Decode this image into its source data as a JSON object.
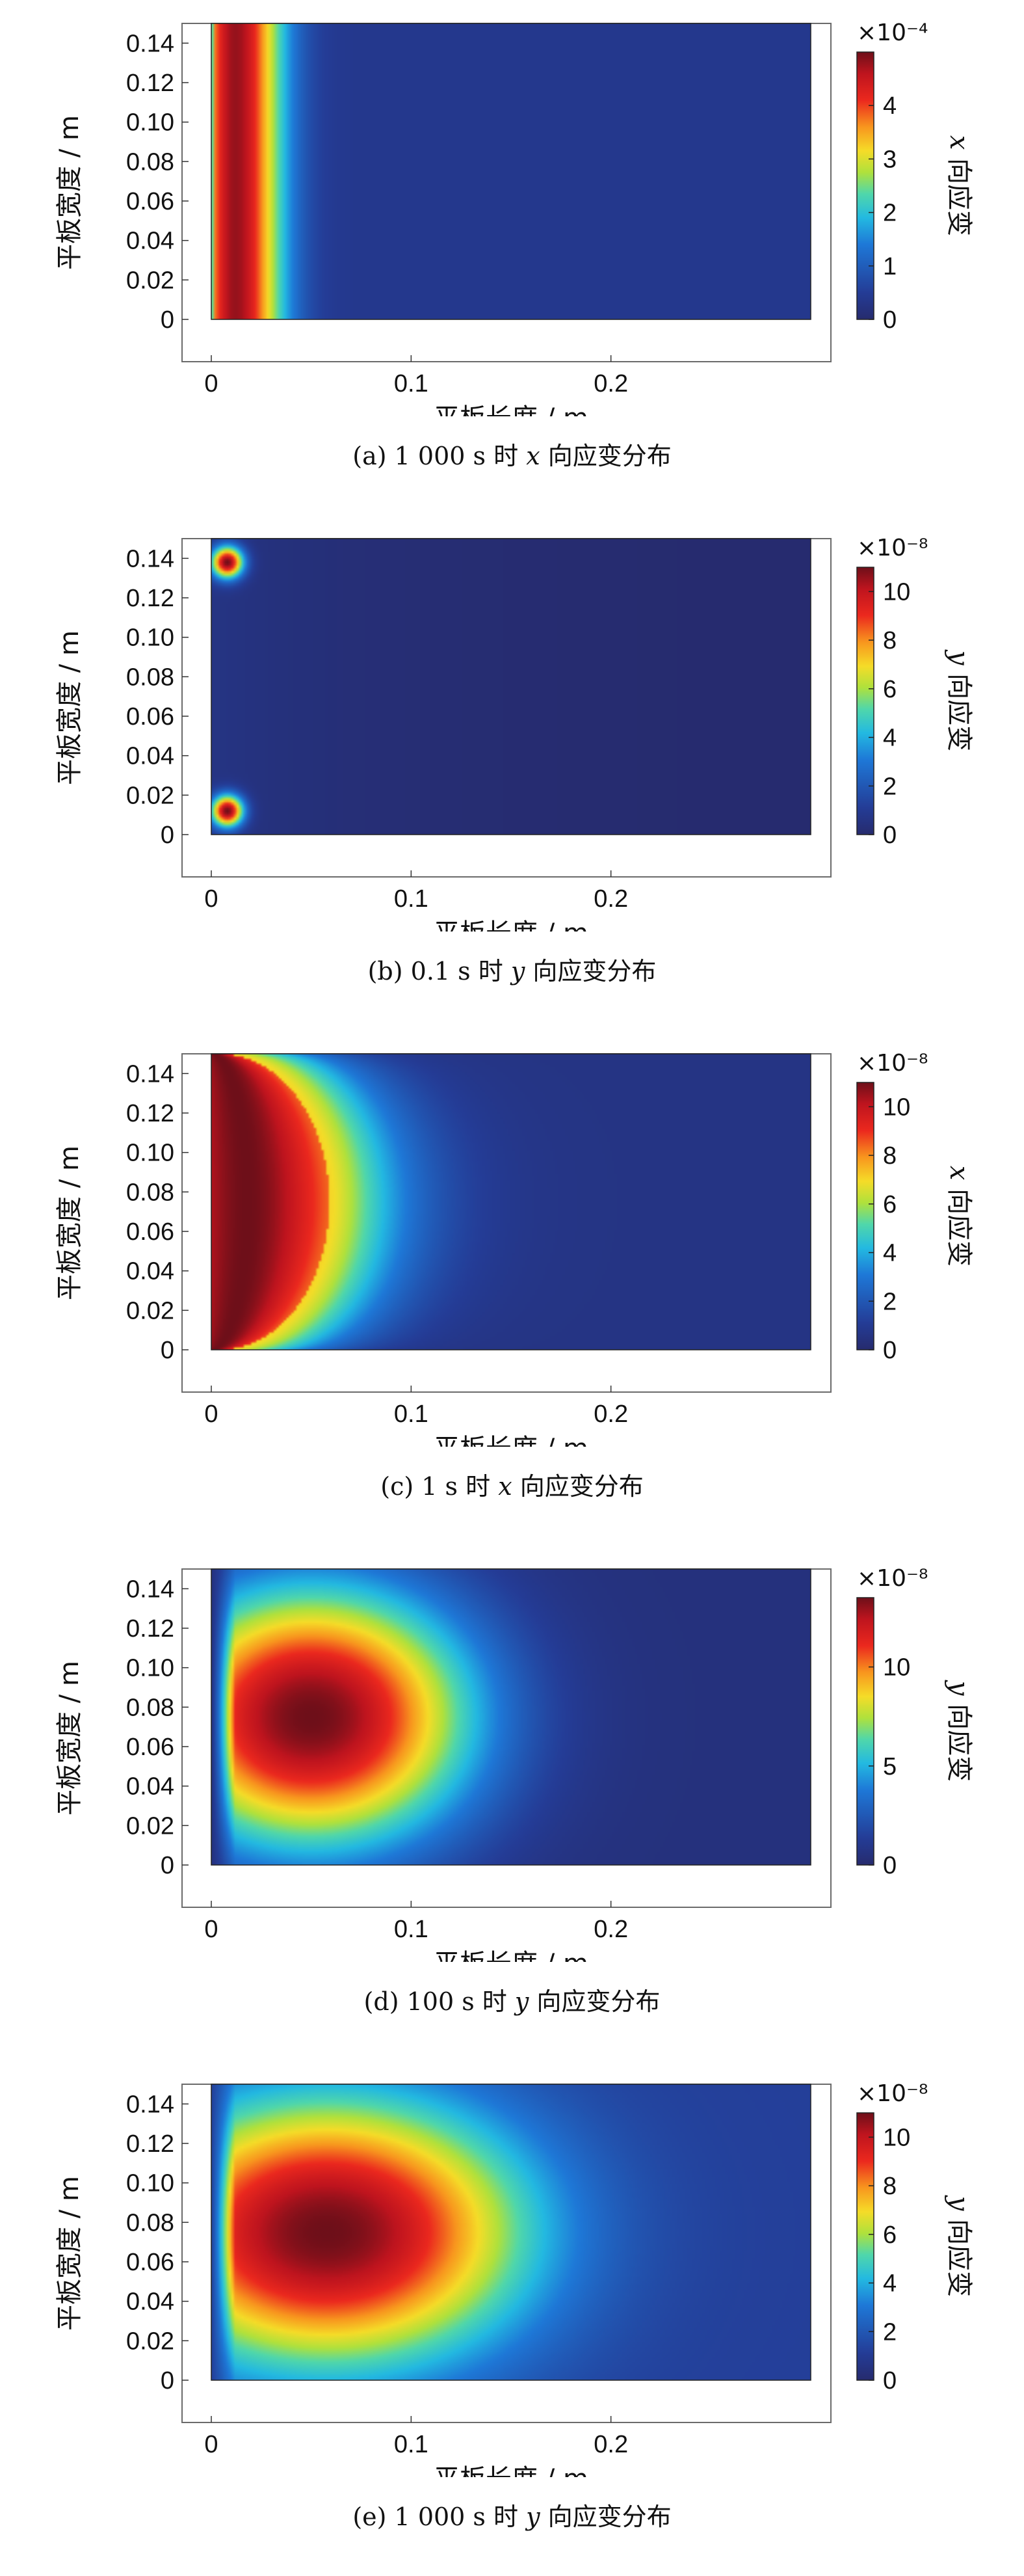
{
  "chart_data": [
    {
      "type": "heatmap",
      "panel": "a",
      "caption": {
        "prefix": "(a) 1 000 s 时 ",
        "var": "x",
        "suffix": " 向应变分布"
      },
      "xlabel": "平板长度 / m",
      "ylabel": "平板宽度 / m",
      "colorbar_label": {
        "var": "x",
        "text": " 向应变"
      },
      "colorbar_multiplier": "×10⁻⁴",
      "xlim": [
        0,
        0.3
      ],
      "ylim": [
        0,
        0.15
      ],
      "xticks": [
        "0",
        "0.1",
        "0.2"
      ],
      "xtick_values": [
        0,
        0.1,
        0.2
      ],
      "yticks": [
        "0",
        "0.02",
        "0.04",
        "0.06",
        "0.08",
        "0.10",
        "0.12",
        "0.14"
      ],
      "ytick_values": [
        0,
        0.02,
        0.04,
        0.06,
        0.08,
        0.1,
        0.12,
        0.14
      ],
      "color_range": [
        0,
        5
      ],
      "colorbar_ticks": [
        "0",
        "1",
        "2",
        "3",
        "4"
      ],
      "colorbar_tick_values": [
        0,
        1,
        2,
        3,
        4
      ],
      "field": {
        "kind": "x_decay",
        "peak": 4.8,
        "peak_x": 0.012,
        "decay_length": 0.024
      }
    },
    {
      "type": "heatmap",
      "panel": "b",
      "caption": {
        "prefix": "(b) 0.1 s 时 ",
        "var": "y",
        "suffix": " 向应变分布"
      },
      "xlabel": "平板长度 / m",
      "ylabel": "平板宽度 / m",
      "colorbar_label": {
        "var": "y",
        "text": " 向应变"
      },
      "colorbar_multiplier": "×10⁻⁸",
      "xlim": [
        0,
        0.3
      ],
      "ylim": [
        0,
        0.15
      ],
      "xticks": [
        "0",
        "0.1",
        "0.2"
      ],
      "xtick_values": [
        0,
        0.1,
        0.2
      ],
      "yticks": [
        "0",
        "0.02",
        "0.04",
        "0.06",
        "0.08",
        "0.10",
        "0.12",
        "0.14"
      ],
      "ytick_values": [
        0,
        0.02,
        0.04,
        0.06,
        0.08,
        0.1,
        0.12,
        0.14
      ],
      "color_range": [
        0,
        11
      ],
      "colorbar_ticks": [
        "0",
        "2",
        "4",
        "6",
        "8",
        "10"
      ],
      "colorbar_tick_values": [
        0,
        2,
        4,
        6,
        8,
        10
      ],
      "field": {
        "kind": "corner_spots",
        "peak": 11,
        "spot_x": 0.008,
        "spot_dy": 0.012,
        "spread": 0.008,
        "background": 0.6
      }
    },
    {
      "type": "heatmap",
      "panel": "c",
      "caption": {
        "prefix": "(c) 1 s 时 ",
        "var": "x",
        "suffix": " 向应变分布"
      },
      "xlabel": "平板长度 / m",
      "ylabel": "平板宽度 / m",
      "colorbar_label": {
        "var": "x",
        "text": " 向应变"
      },
      "colorbar_multiplier": "×10⁻⁸",
      "xlim": [
        0,
        0.3
      ],
      "ylim": [
        0,
        0.15
      ],
      "xticks": [
        "0",
        "0.1",
        "0.2"
      ],
      "xtick_values": [
        0,
        0.1,
        0.2
      ],
      "yticks": [
        "0",
        "0.02",
        "0.04",
        "0.06",
        "0.08",
        "0.10",
        "0.12",
        "0.14"
      ],
      "ytick_values": [
        0,
        0.02,
        0.04,
        0.06,
        0.08,
        0.1,
        0.12,
        0.14
      ],
      "color_range": [
        0,
        11
      ],
      "colorbar_ticks": [
        "0",
        "2",
        "4",
        "6",
        "8",
        "10"
      ],
      "colorbar_tick_values": [
        0,
        2,
        4,
        6,
        8,
        10
      ],
      "field": {
        "kind": "crescent",
        "peak": 11,
        "edge_x": 0.055,
        "crest_x": 0.018,
        "band_width": 0.04,
        "background": 0.6
      }
    },
    {
      "type": "heatmap",
      "panel": "d",
      "caption": {
        "prefix": "(d) 100 s 时 ",
        "var": "y",
        "suffix": " 向应变分布"
      },
      "xlabel": "平板长度 / m",
      "ylabel": "平板宽度 / m",
      "colorbar_label": {
        "var": "y",
        "text": " 向应变"
      },
      "colorbar_multiplier": "×10⁻⁸",
      "xlim": [
        0,
        0.3
      ],
      "ylim": [
        0,
        0.15
      ],
      "xticks": [
        "0",
        "0.1",
        "0.2"
      ],
      "xtick_values": [
        0,
        0.1,
        0.2
      ],
      "yticks": [
        "0",
        "0.02",
        "0.04",
        "0.06",
        "0.08",
        "0.10",
        "0.12",
        "0.14"
      ],
      "ytick_values": [
        0,
        0.02,
        0.04,
        0.06,
        0.08,
        0.1,
        0.12,
        0.14
      ],
      "color_range": [
        0,
        13.5
      ],
      "colorbar_ticks": [
        "0",
        "5",
        "10"
      ],
      "colorbar_tick_values": [
        0,
        5,
        10
      ],
      "field": {
        "kind": "blob",
        "peak": 13.5,
        "center_x": 0.05,
        "center_y": 0.075,
        "radius_x": 0.085,
        "radius_y": 0.07,
        "background": 0.5
      }
    },
    {
      "type": "heatmap",
      "panel": "e",
      "caption": {
        "prefix": "(e) 1 000 s 时 ",
        "var": "y",
        "suffix": " 向应变分布"
      },
      "xlabel": "平板长度 / m",
      "ylabel": "平板宽度 / m",
      "colorbar_label": {
        "var": "y",
        "text": " 向应变"
      },
      "colorbar_multiplier": "×10⁻⁸",
      "xlim": [
        0,
        0.3
      ],
      "ylim": [
        0,
        0.15
      ],
      "xticks": [
        "0",
        "0.1",
        "0.2"
      ],
      "xtick_values": [
        0,
        0.1,
        0.2
      ],
      "yticks": [
        "0",
        "0.02",
        "0.04",
        "0.06",
        "0.08",
        "0.10",
        "0.12",
        "0.14"
      ],
      "ytick_values": [
        0,
        0.02,
        0.04,
        0.06,
        0.08,
        0.1,
        0.12,
        0.14
      ],
      "color_range": [
        0,
        11
      ],
      "colorbar_ticks": [
        "0",
        "2",
        "4",
        "6",
        "8",
        "10"
      ],
      "colorbar_tick_values": [
        0,
        2,
        4,
        6,
        8,
        10
      ],
      "field": {
        "kind": "blob",
        "peak": 11,
        "center_x": 0.058,
        "center_y": 0.075,
        "radius_x": 0.105,
        "radius_y": 0.072,
        "background": 1.2
      }
    }
  ]
}
